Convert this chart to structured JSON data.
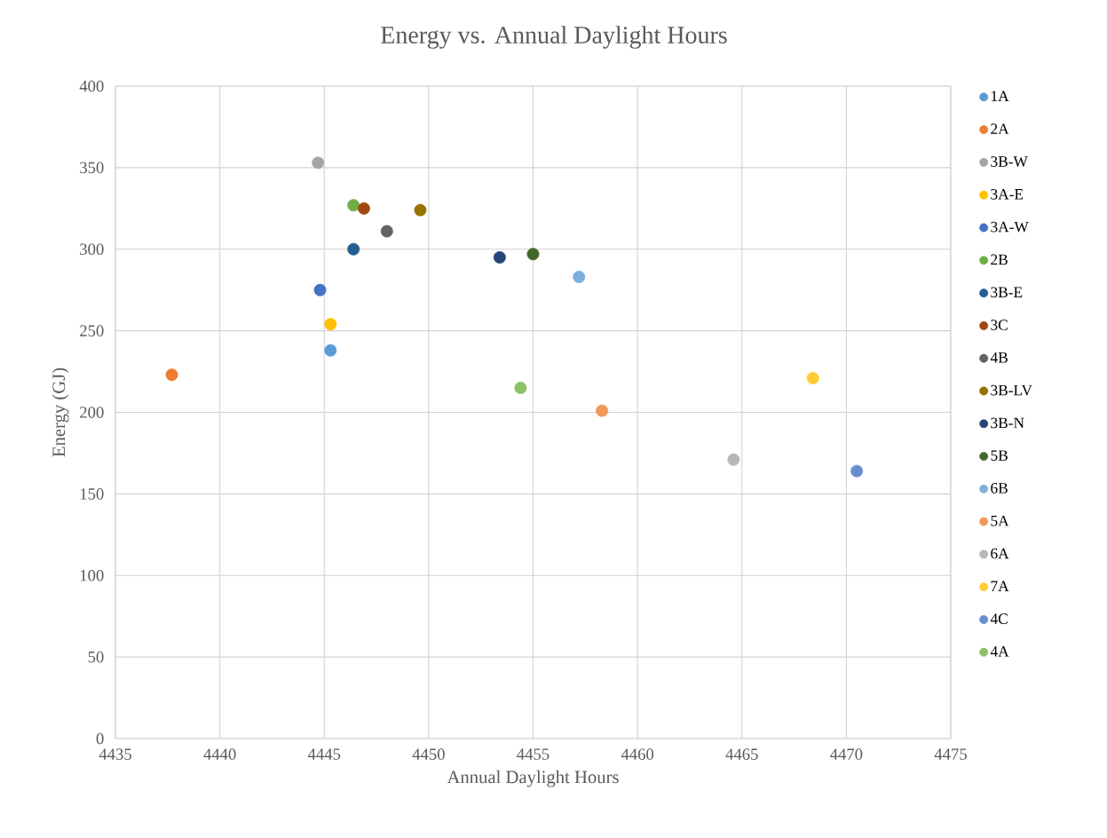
{
  "chart_data": {
    "type": "scatter",
    "title": "Energy vs. Annual Daylight Hours",
    "xlabel": "Annual Daylight Hours",
    "ylabel": "Energy (GJ)",
    "xlim": [
      4435,
      4475
    ],
    "xticks": [
      4435,
      4440,
      4445,
      4450,
      4455,
      4460,
      4465,
      4470,
      4475
    ],
    "ylim": [
      0,
      400
    ],
    "yticks": [
      0,
      50,
      100,
      150,
      200,
      250,
      300,
      350,
      400
    ],
    "grid": true,
    "legend": "right",
    "series": [
      {
        "name": "1A",
        "color": "#5b9bd5",
        "x": [
          4445.3
        ],
        "values": [
          238
        ]
      },
      {
        "name": "2A",
        "color": "#ed7d31",
        "x": [
          4437.7
        ],
        "values": [
          223
        ]
      },
      {
        "name": "3B-W",
        "color": "#a5a5a5",
        "x": [
          4444.7
        ],
        "values": [
          353
        ]
      },
      {
        "name": "3A-E",
        "color": "#ffc000",
        "x": [
          4445.3
        ],
        "values": [
          254
        ]
      },
      {
        "name": "3A-W",
        "color": "#4472c4",
        "x": [
          4444.8
        ],
        "values": [
          275
        ]
      },
      {
        "name": "2B",
        "color": "#70ad47",
        "x": [
          4446.4
        ],
        "values": [
          327
        ]
      },
      {
        "name": "3B-E",
        "color": "#255e91",
        "x": [
          4446.4
        ],
        "values": [
          300
        ]
      },
      {
        "name": "3C",
        "color": "#9e480e",
        "x": [
          4446.9
        ],
        "values": [
          325
        ]
      },
      {
        "name": "4B",
        "color": "#636363",
        "x": [
          4448.0
        ],
        "values": [
          311
        ]
      },
      {
        "name": "3B-LV",
        "color": "#997300",
        "x": [
          4449.6
        ],
        "values": [
          324
        ]
      },
      {
        "name": "3B-N",
        "color": "#264478",
        "x": [
          4453.4
        ],
        "values": [
          295
        ]
      },
      {
        "name": "5B",
        "color": "#43682b",
        "x": [
          4455.0
        ],
        "values": [
          297
        ]
      },
      {
        "name": "6B",
        "color": "#7cafdd",
        "x": [
          4457.2
        ],
        "values": [
          283
        ]
      },
      {
        "name": "5A",
        "color": "#f1975a",
        "x": [
          4458.3
        ],
        "values": [
          201
        ]
      },
      {
        "name": "6A",
        "color": "#b7b7b7",
        "x": [
          4464.6
        ],
        "values": [
          171
        ]
      },
      {
        "name": "7A",
        "color": "#ffcd33",
        "x": [
          4468.4
        ],
        "values": [
          221
        ]
      },
      {
        "name": "4C",
        "color": "#698ed0",
        "x": [
          4470.5
        ],
        "values": [
          164
        ]
      },
      {
        "name": "4A",
        "color": "#8cc168",
        "x": [
          4454.4
        ],
        "values": [
          215
        ]
      }
    ]
  }
}
